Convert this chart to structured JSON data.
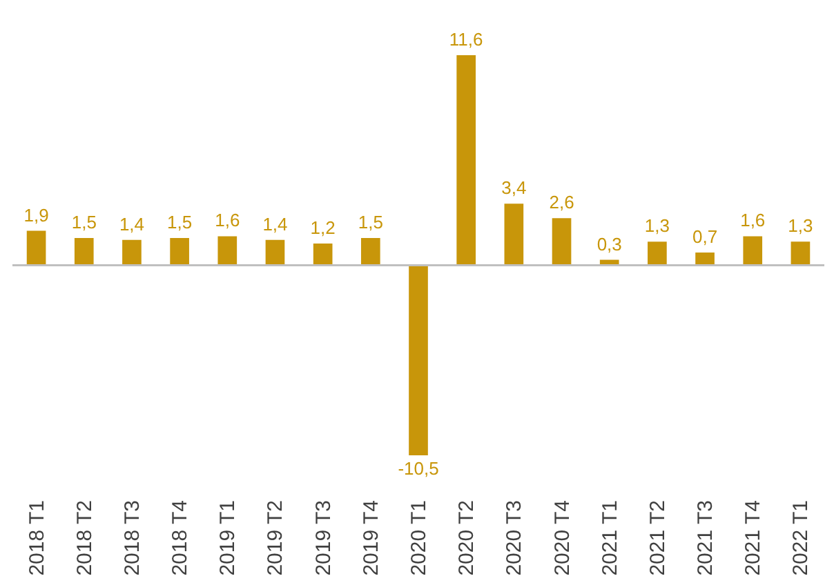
{
  "chart_data": {
    "type": "bar",
    "categories": [
      "2018 T1",
      "2018 T2",
      "2018 T3",
      "2018 T4",
      "2019 T1",
      "2019 T2",
      "2019 T3",
      "2019 T4",
      "2020 T1",
      "2020 T2",
      "2020 T3",
      "2020 T4",
      "2021 T1",
      "2021 T2",
      "2021 T3",
      "2021 T4",
      "2022 T1"
    ],
    "values": [
      1.9,
      1.5,
      1.4,
      1.5,
      1.6,
      1.4,
      1.2,
      1.5,
      -10.5,
      11.6,
      3.4,
      2.6,
      0.3,
      1.3,
      0.7,
      1.6,
      1.3
    ],
    "value_labels": [
      "1,9",
      "1,5",
      "1,4",
      "1,5",
      "1,6",
      "1,4",
      "1,2",
      "1,5",
      "-10,5",
      "11,6",
      "3,4",
      "2,6",
      "0,3",
      "1,3",
      "0,7",
      "1,6",
      "1,3"
    ],
    "color": "#c8960a"
  }
}
